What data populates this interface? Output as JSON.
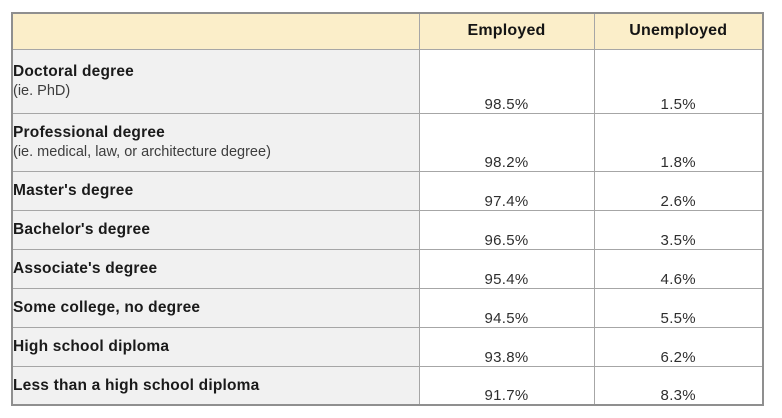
{
  "table": {
    "columns": [
      "",
      "Employed",
      "Unemployed"
    ],
    "rows": [
      {
        "label": "Doctoral degree",
        "sublabel": "(ie. PhD)",
        "employed": "98.5%",
        "unemployed": "1.5%"
      },
      {
        "label": "Professional degree",
        "sublabel": "(ie. medical, law, or architecture degree)",
        "employed": "98.2%",
        "unemployed": "1.8%"
      },
      {
        "label": "Master's degree",
        "sublabel": "",
        "employed": "97.4%",
        "unemployed": "2.6%"
      },
      {
        "label": "Bachelor's degree",
        "sublabel": "",
        "employed": "96.5%",
        "unemployed": "3.5%"
      },
      {
        "label": "Associate's degree",
        "sublabel": "",
        "employed": "95.4%",
        "unemployed": "4.6%"
      },
      {
        "label": "Some college, no degree",
        "sublabel": "",
        "employed": "94.5%",
        "unemployed": "5.5%"
      },
      {
        "label": "High school diploma",
        "sublabel": "",
        "employed": "93.8%",
        "unemployed": "6.2%"
      },
      {
        "label": "Less than a high school diploma",
        "sublabel": "",
        "employed": "91.7%",
        "unemployed": "8.3%"
      }
    ],
    "colors": {
      "header_background": "#fbeec9",
      "label_cell_background": "#f1f1f1",
      "value_cell_background": "#ffffff",
      "border": "#a6a6a6",
      "outer_border": "#8f8f8f",
      "text": "#1a1a1a"
    }
  },
  "chart_data": {
    "type": "table",
    "categories": [
      "Doctoral degree (ie. PhD)",
      "Professional degree (ie. medical, law, or architecture degree)",
      "Master's degree",
      "Bachelor's degree",
      "Associate's degree",
      "Some college, no degree",
      "High school diploma",
      "Less than a high school diploma"
    ],
    "series": [
      {
        "name": "Employed",
        "values": [
          98.5,
          98.2,
          97.4,
          96.5,
          95.4,
          94.5,
          93.8,
          91.7
        ]
      },
      {
        "name": "Unemployed",
        "values": [
          1.5,
          1.8,
          2.6,
          3.5,
          4.6,
          5.5,
          6.2,
          8.3
        ]
      }
    ],
    "unit": "%",
    "title": "",
    "legend_position": "header-row",
    "grid": true
  }
}
